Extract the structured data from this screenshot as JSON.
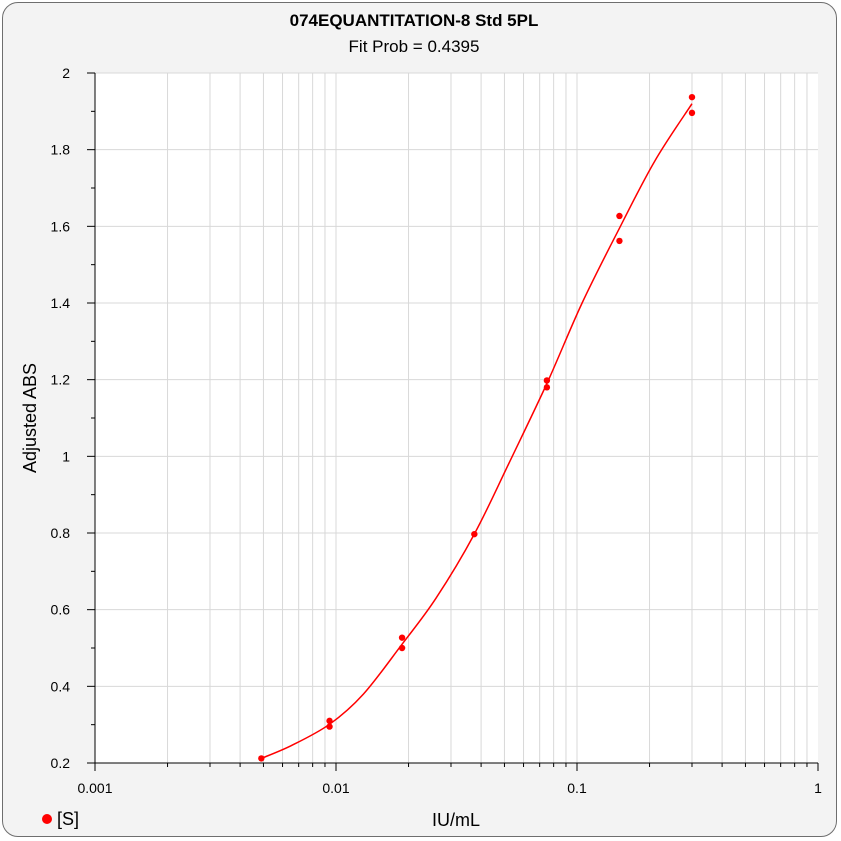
{
  "chart_data": {
    "type": "scatter",
    "title": "074EQUANTITATION-8 Std 5PL",
    "subtitle": "Fit Prob = 0.4395",
    "xlabel": "IU/mL",
    "ylabel": "Adjusted ABS",
    "x_scale": "log",
    "xlim": [
      0.001,
      1
    ],
    "ylim": [
      0.2,
      2
    ],
    "x_ticks": [
      {
        "value": 0.001,
        "label": "0.001"
      },
      {
        "value": 0.01,
        "label": "0.01"
      },
      {
        "value": 0.1,
        "label": "0.1"
      },
      {
        "value": 1,
        "label": "1"
      }
    ],
    "y_ticks": [
      {
        "value": 0.2,
        "label": "0.2"
      },
      {
        "value": 0.4,
        "label": "0.4"
      },
      {
        "value": 0.6,
        "label": "0.6"
      },
      {
        "value": 0.8,
        "label": "0.8"
      },
      {
        "value": 1.0,
        "label": "1"
      },
      {
        "value": 1.2,
        "label": "1.2"
      },
      {
        "value": 1.4,
        "label": "1.4"
      },
      {
        "value": 1.6,
        "label": "1.6"
      },
      {
        "value": 1.8,
        "label": "1.8"
      },
      {
        "value": 2.0,
        "label": "2"
      }
    ],
    "grid": true,
    "legend_position": "bottom-left",
    "colors": {
      "series": "#ff0000",
      "grid": "#d8d8d8",
      "plot_bg": "#ffffff"
    },
    "series": [
      {
        "name": "[S]",
        "marker": "dot",
        "points": [
          {
            "x": 0.0049,
            "y": 0.212
          },
          {
            "x": 0.0094,
            "y": 0.31
          },
          {
            "x": 0.0094,
            "y": 0.295
          },
          {
            "x": 0.0188,
            "y": 0.527
          },
          {
            "x": 0.0188,
            "y": 0.5
          },
          {
            "x": 0.0375,
            "y": 0.797
          },
          {
            "x": 0.075,
            "y": 1.198
          },
          {
            "x": 0.075,
            "y": 1.18
          },
          {
            "x": 0.15,
            "y": 1.627
          },
          {
            "x": 0.15,
            "y": 1.562
          },
          {
            "x": 0.3,
            "y": 1.937
          },
          {
            "x": 0.3,
            "y": 1.896
          }
        ]
      }
    ],
    "fit_curve": {
      "model": "5PL",
      "points": [
        {
          "x": 0.0049,
          "y": 0.212
        },
        {
          "x": 0.0065,
          "y": 0.245
        },
        {
          "x": 0.0094,
          "y": 0.301
        },
        {
          "x": 0.013,
          "y": 0.38
        },
        {
          "x": 0.0188,
          "y": 0.51
        },
        {
          "x": 0.026,
          "y": 0.63
        },
        {
          "x": 0.0375,
          "y": 0.797
        },
        {
          "x": 0.052,
          "y": 0.98
        },
        {
          "x": 0.075,
          "y": 1.19
        },
        {
          "x": 0.105,
          "y": 1.4
        },
        {
          "x": 0.15,
          "y": 1.595
        },
        {
          "x": 0.21,
          "y": 1.77
        },
        {
          "x": 0.3,
          "y": 1.92
        }
      ]
    }
  }
}
